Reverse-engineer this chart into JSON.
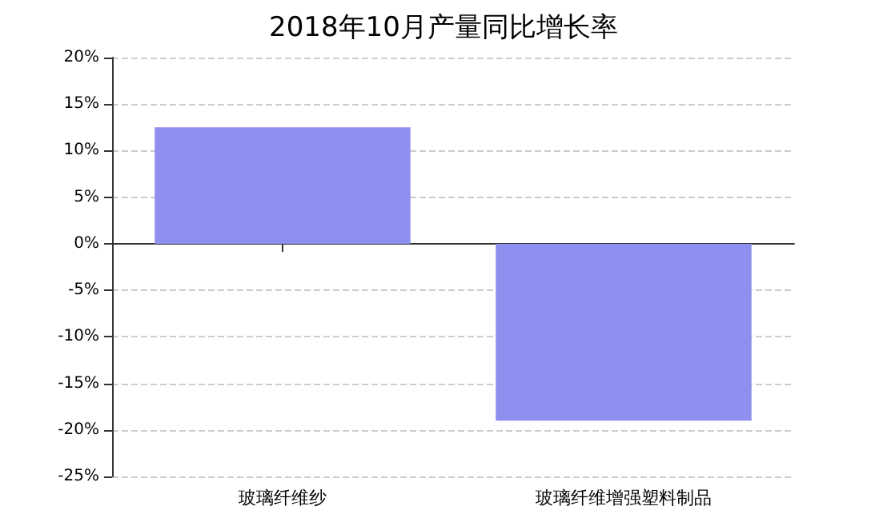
{
  "chart_data": {
    "type": "bar",
    "title": "2018年10月产量同比增长率",
    "categories": [
      "玻璃纤维纱",
      "玻璃纤维增强塑料制品"
    ],
    "values": [
      12.5,
      -19
    ],
    "color": "#8f8fef",
    "ylim": [
      -25,
      20
    ],
    "yticks": [
      {
        "value": -25,
        "label": "-25%"
      },
      {
        "value": -20,
        "label": "-20%"
      },
      {
        "value": -15,
        "label": "-15%"
      },
      {
        "value": -10,
        "label": "-10%"
      },
      {
        "value": -5,
        "label": "-5%"
      },
      {
        "value": 0,
        "label": "0%"
      },
      {
        "value": 5,
        "label": "5%"
      },
      {
        "value": 10,
        "label": "10%"
      },
      {
        "value": 15,
        "label": "15%"
      },
      {
        "value": 20,
        "label": "20%"
      }
    ],
    "grid": "y"
  }
}
